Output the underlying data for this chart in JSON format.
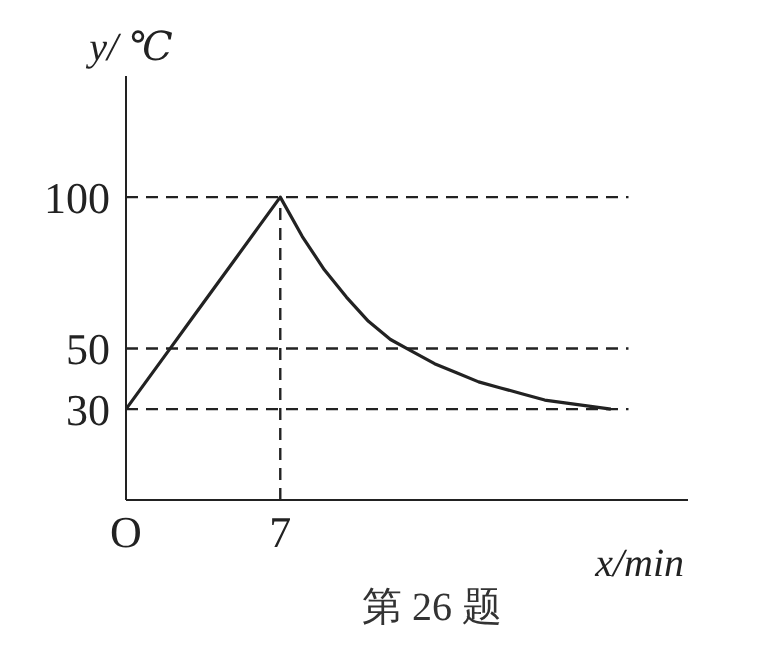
{
  "chart_data": {
    "type": "line",
    "xlabel": "x/min",
    "ylabel": "y/ ℃",
    "annotations": [
      "第 26 题"
    ],
    "categories": [
      "O",
      null,
      null,
      null,
      null,
      null,
      null,
      "7",
      null,
      null,
      null,
      null,
      null,
      null,
      null,
      null,
      null,
      null,
      null,
      null,
      null,
      null,
      null
    ],
    "series": [
      {
        "color": "#222222",
        "values": [
          30,
          40,
          50,
          60,
          70,
          80,
          90,
          100,
          87,
          76,
          67,
          59,
          53,
          49,
          45,
          42,
          39,
          37,
          35,
          33,
          32,
          31,
          30
        ]
      }
    ],
    "ylim": [
      0,
      140
    ],
    "yticks": [
      30,
      50,
      100
    ],
    "ref_lines": [
      {
        "axis": "y",
        "value": 100,
        "line_style": "dashed",
        "color": "#222222"
      },
      {
        "axis": "y",
        "value": 50,
        "line_style": "dashed",
        "color": "#222222"
      },
      {
        "axis": "y",
        "value": 30,
        "line_style": "dashed",
        "color": "#222222"
      },
      {
        "axis": "x",
        "value": "7",
        "line_style": "dashed",
        "color": "#222222"
      }
    ],
    "grid": false,
    "legend": false,
    "marker": "none",
    "line_style": "solid"
  }
}
